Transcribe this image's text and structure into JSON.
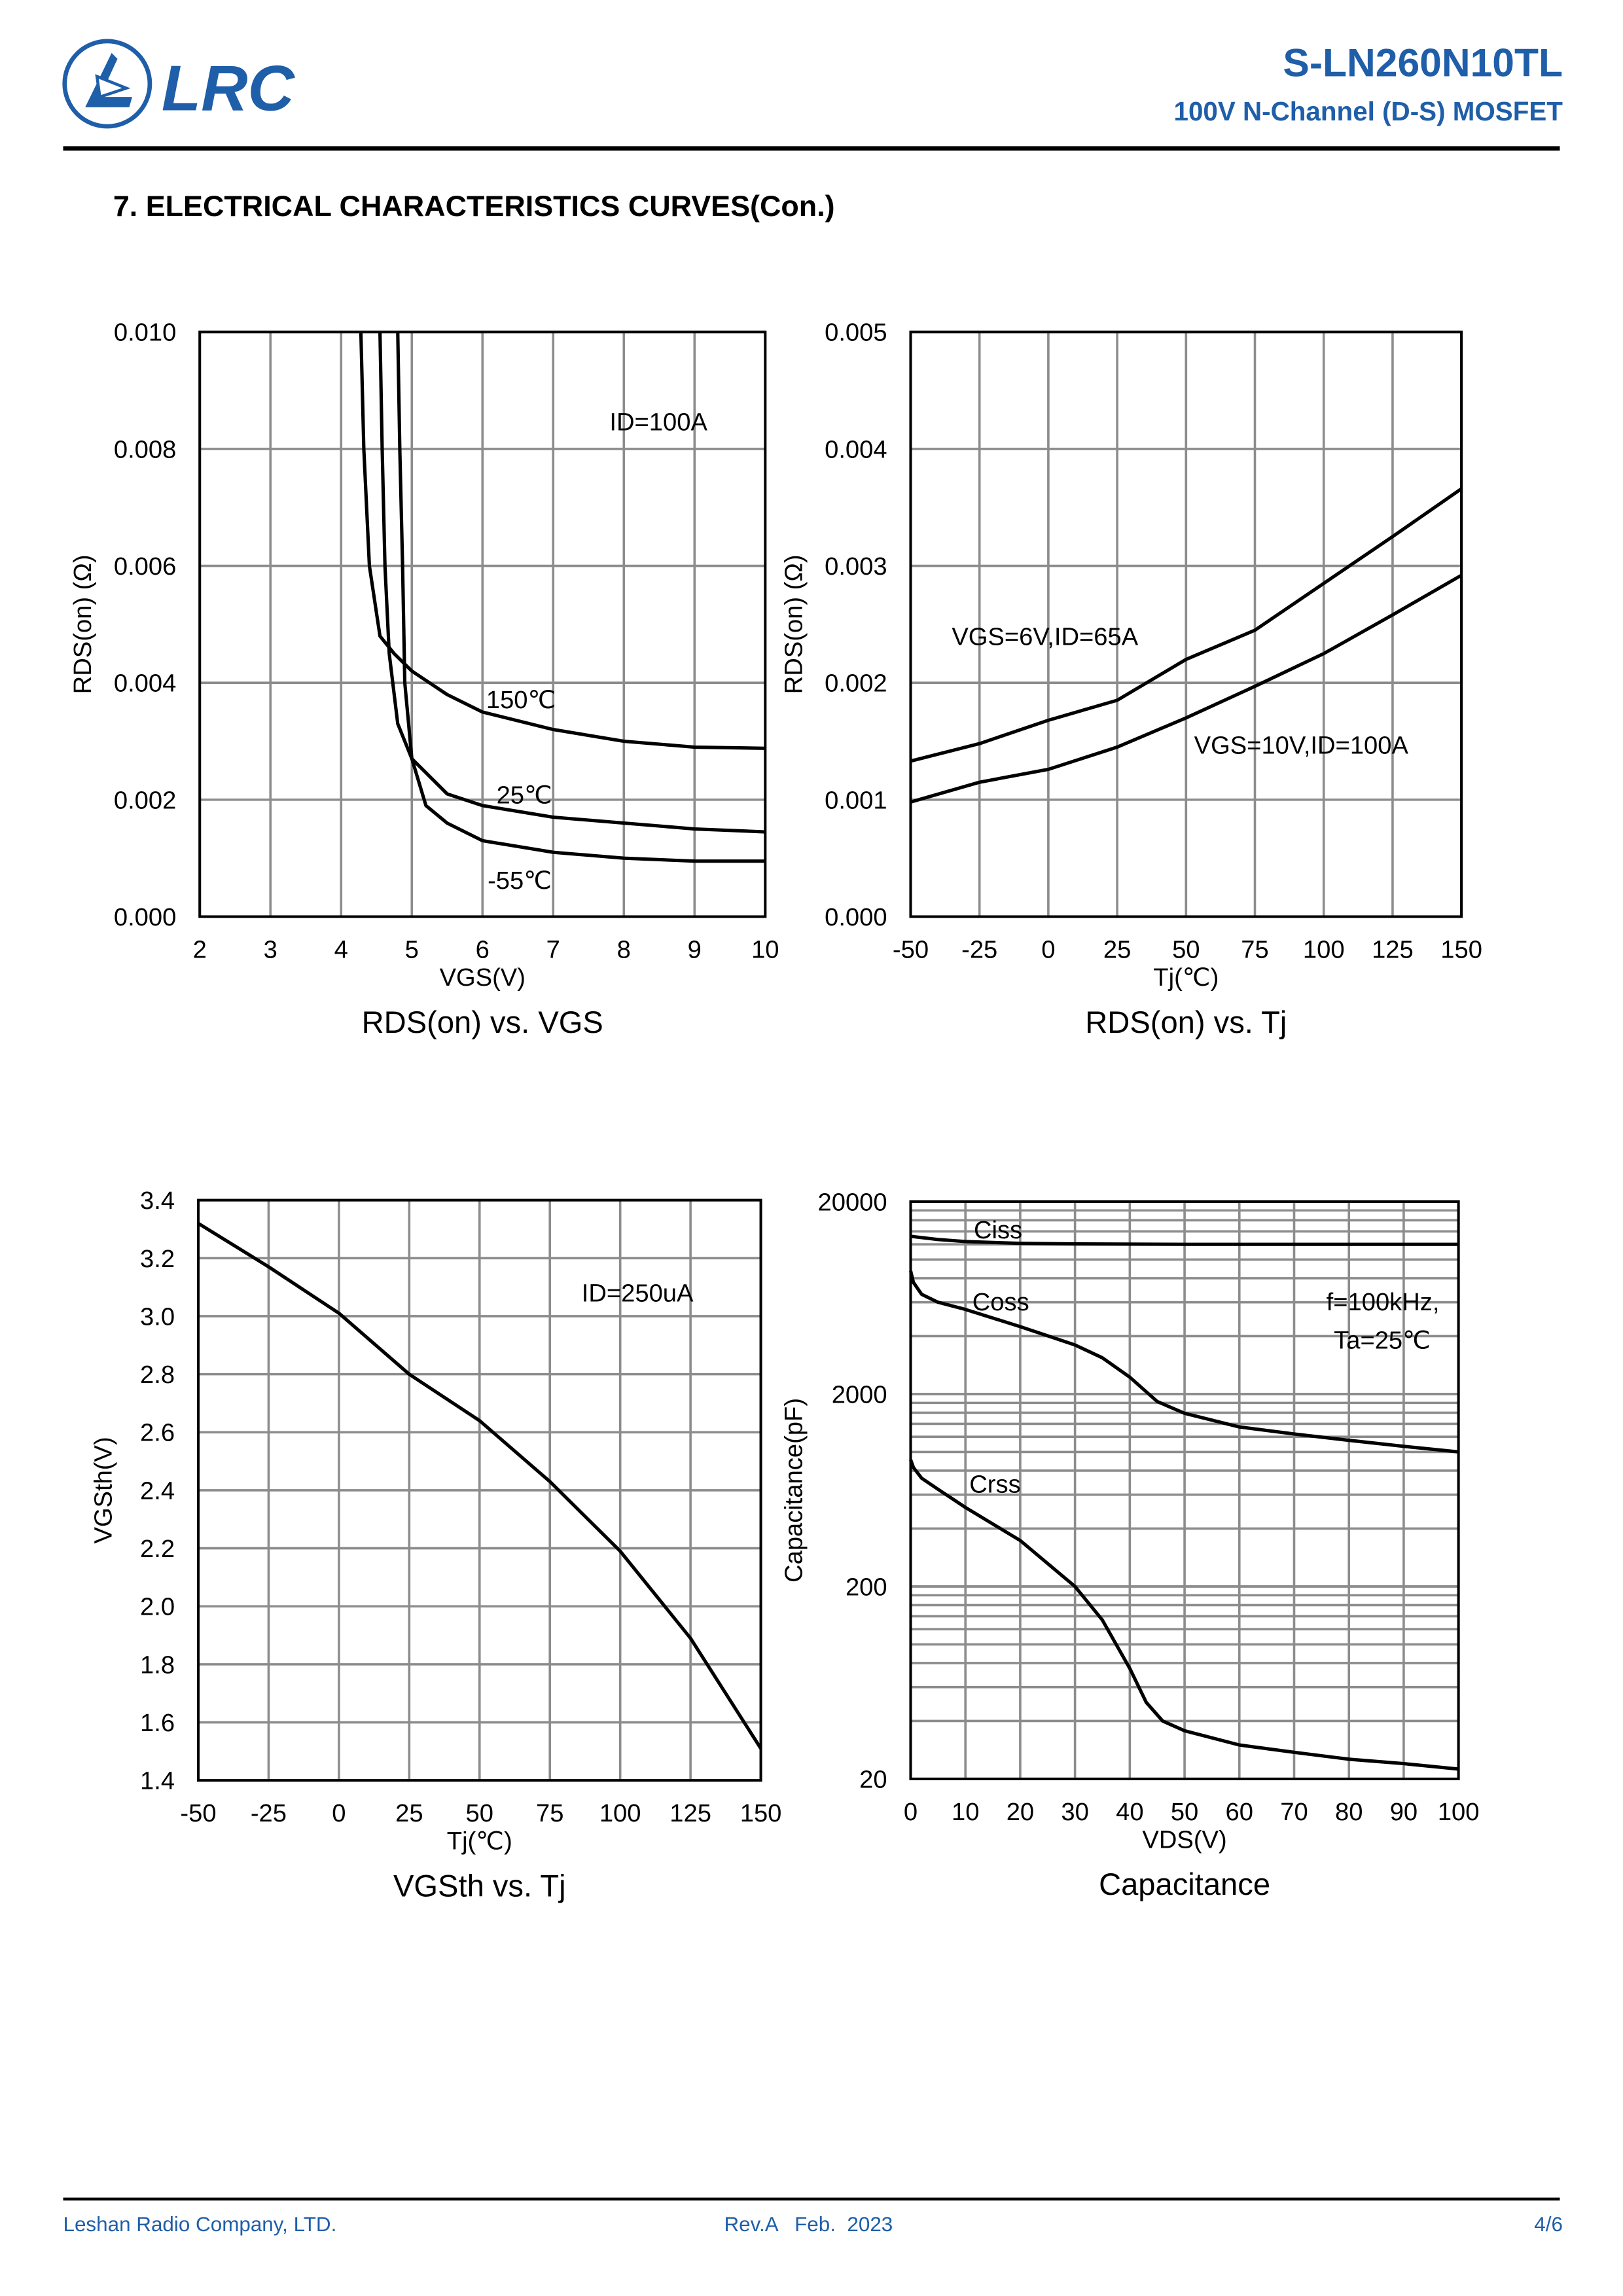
{
  "header": {
    "logo_text": "LRC",
    "part_number": "S-LN260N10TL",
    "subtitle": "100V N-Channel (D-S) MOSFET",
    "brand_color": "#1f5ea8"
  },
  "section_title": "7. ELECTRICAL CHARACTERISTICS CURVES(Con.)",
  "chart_data": [
    {
      "type": "line",
      "title": "RDS(on) vs. VGS",
      "xlabel": "VGS(V)",
      "ylabel": "RDS(on) (Ω)",
      "xlim": [
        2,
        10
      ],
      "ylim": [
        0,
        0.01
      ],
      "xticks": [
        "2",
        "3",
        "4",
        "5",
        "6",
        "7",
        "8",
        "9",
        "10"
      ],
      "yticks": [
        "0.000",
        "0.002",
        "0.004",
        "0.006",
        "0.008",
        "0.010"
      ],
      "grid": true,
      "annotations": [
        "ID=100A",
        "150℃",
        "25℃",
        "-55℃"
      ],
      "series": [
        {
          "name": "150℃",
          "x": [
            4.28,
            4.32,
            4.4,
            4.55,
            4.75,
            5,
            5.5,
            6,
            7,
            8,
            9,
            10
          ],
          "y": [
            0.01,
            0.008,
            0.006,
            0.0048,
            0.0045,
            0.0042,
            0.0038,
            0.0035,
            0.0032,
            0.003,
            0.0029,
            0.00288
          ]
        },
        {
          "name": "25℃",
          "x": [
            4.55,
            4.58,
            4.62,
            4.68,
            4.8,
            5,
            5.5,
            6,
            7,
            8,
            9,
            10
          ],
          "y": [
            0.01,
            0.008,
            0.006,
            0.0045,
            0.0033,
            0.0027,
            0.0021,
            0.0019,
            0.0017,
            0.0016,
            0.0015,
            0.00145
          ]
        },
        {
          "name": "-55℃",
          "x": [
            4.8,
            4.83,
            4.87,
            4.9,
            5,
            5.2,
            5.5,
            6,
            7,
            8,
            9,
            10
          ],
          "y": [
            0.01,
            0.008,
            0.006,
            0.004,
            0.0027,
            0.0019,
            0.0016,
            0.0013,
            0.0011,
            0.001,
            0.00095,
            0.00095
          ]
        }
      ]
    },
    {
      "type": "line",
      "title": "RDS(on) vs. Tj",
      "xlabel": "Tj(℃)",
      "ylabel": "RDS(on) (Ω)",
      "xlim": [
        -50,
        150
      ],
      "ylim": [
        0,
        0.005
      ],
      "xticks": [
        "-50",
        "-25",
        "0",
        "25",
        "50",
        "75",
        "100",
        "125",
        "150"
      ],
      "yticks": [
        "0.000",
        "0.001",
        "0.002",
        "0.003",
        "0.004",
        "0.005"
      ],
      "grid": true,
      "annotations": [
        "VGS=6V,ID=65A",
        "VGS=10V,ID=100A"
      ],
      "series": [
        {
          "name": "VGS=6V,ID=65A",
          "x": [
            -50,
            -25,
            0,
            25,
            50,
            75,
            100,
            125,
            150
          ],
          "y": [
            0.00133,
            0.00148,
            0.00168,
            0.00185,
            0.0022,
            0.00245,
            0.00285,
            0.00325,
            0.00366
          ]
        },
        {
          "name": "VGS=10V,ID=100A",
          "x": [
            -50,
            -25,
            0,
            25,
            50,
            75,
            100,
            125,
            150
          ],
          "y": [
            0.00098,
            0.00115,
            0.00126,
            0.00145,
            0.0017,
            0.00197,
            0.00225,
            0.00258,
            0.00292
          ]
        }
      ]
    },
    {
      "type": "line",
      "title": "VGSth vs. Tj",
      "xlabel": "Tj(℃)",
      "ylabel": "VGSth(V)",
      "xlim": [
        -50,
        150
      ],
      "ylim": [
        1.4,
        3.4
      ],
      "xticks": [
        "-50",
        "-25",
        "0",
        "25",
        "50",
        "75",
        "100",
        "125",
        "150"
      ],
      "yticks": [
        "1.4",
        "1.6",
        "1.8",
        "2.0",
        "2.2",
        "2.4",
        "2.6",
        "2.8",
        "3.0",
        "3.2",
        "3.4"
      ],
      "grid": true,
      "annotations": [
        "ID=250uA"
      ],
      "series": [
        {
          "name": "VGSth",
          "x": [
            -50,
            -25,
            0,
            25,
            50,
            75,
            100,
            125,
            150
          ],
          "y": [
            3.32,
            3.17,
            3.01,
            2.8,
            2.64,
            2.43,
            2.19,
            1.89,
            1.51
          ]
        }
      ]
    },
    {
      "type": "line",
      "title": "Capacitance",
      "xlabel": "VDS(V)",
      "ylabel": "Capacitance(pF)",
      "xlim": [
        0,
        100
      ],
      "ylim": [
        20,
        20000
      ],
      "yscale": "log",
      "xticks": [
        "0",
        "10",
        "20",
        "30",
        "40",
        "50",
        "60",
        "70",
        "80",
        "90",
        "100"
      ],
      "yticks": [
        "20",
        "200",
        "2000",
        "20000"
      ],
      "grid": true,
      "annotations": [
        "Ciss",
        "Coss",
        "Crss",
        "f=100kHz,",
        "Ta=25℃"
      ],
      "series": [
        {
          "name": "Ciss",
          "x": [
            0,
            5,
            10,
            20,
            30,
            50,
            100
          ],
          "y": [
            13200,
            12700,
            12400,
            12150,
            12050,
            12000,
            12000
          ]
        },
        {
          "name": "Coss",
          "x": [
            0,
            0.5,
            2,
            5,
            10,
            20,
            30,
            35,
            40,
            45,
            50,
            60,
            70,
            80,
            90,
            100
          ],
          "y": [
            8730,
            7600,
            6600,
            6000,
            5500,
            4480,
            3600,
            3090,
            2450,
            1830,
            1590,
            1350,
            1240,
            1150,
            1070,
            1000
          ]
        },
        {
          "name": "Crss",
          "x": [
            0,
            0.5,
            2,
            5,
            10,
            20,
            30,
            35,
            40,
            43,
            46,
            50,
            60,
            70,
            80,
            90,
            100
          ],
          "y": [
            911,
            830,
            730,
            640,
            515,
            347,
            200,
            134,
            75,
            50,
            40,
            35.6,
            30,
            27.5,
            25.3,
            24,
            22.5
          ]
        }
      ]
    }
  ],
  "footer": {
    "company": "Leshan Radio Company, LTD.",
    "revision": "Rev.A   Feb.  2023",
    "page": "4/6"
  }
}
